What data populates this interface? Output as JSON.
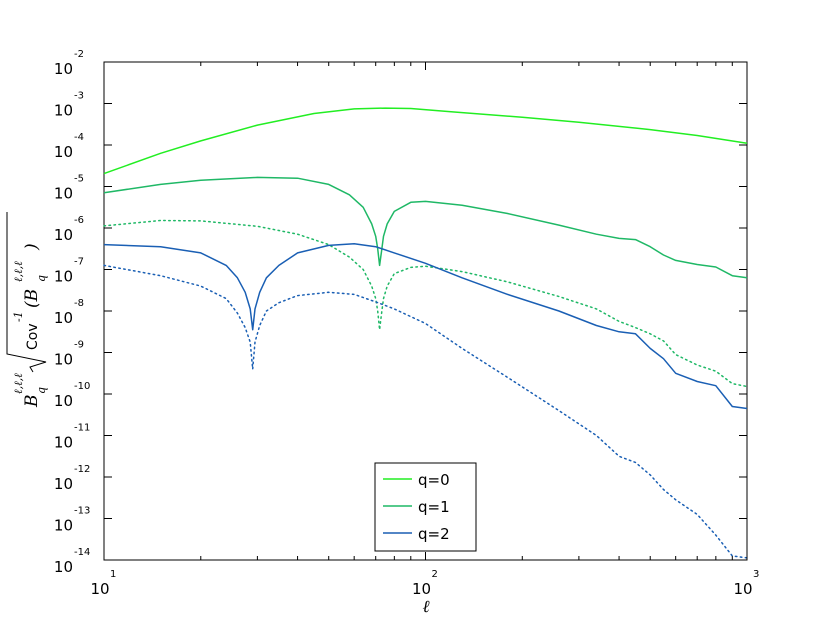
{
  "chart_data": {
    "type": "line",
    "xlabel": "ℓ",
    "ylabel": {
      "main": "B",
      "sub": "q",
      "sup": "ℓ,ℓ,ℓ",
      "cov": "Cov",
      "inv": "-1",
      "paren_main": "(B",
      "paren_sub": "q",
      "paren_sup": "ℓ,ℓ,ℓ",
      "paren_close": ")"
    },
    "xscale": "log",
    "yscale": "log",
    "xlim": [
      10,
      1000
    ],
    "ylim": [
      1e-14,
      0.01
    ],
    "x_ticks": [
      {
        "value": 10,
        "base": "10",
        "exp": "1"
      },
      {
        "value": 100,
        "base": "10",
        "exp": "2"
      },
      {
        "value": 1000,
        "base": "10",
        "exp": "3"
      }
    ],
    "y_ticks": [
      {
        "value": -2,
        "base": "10",
        "exp": "-2"
      },
      {
        "value": -3,
        "base": "10",
        "exp": "-3"
      },
      {
        "value": -4,
        "base": "10",
        "exp": "-4"
      },
      {
        "value": -5,
        "base": "10",
        "exp": "-5"
      },
      {
        "value": -6,
        "base": "10",
        "exp": "-6"
      },
      {
        "value": -7,
        "base": "10",
        "exp": "-7"
      },
      {
        "value": -8,
        "base": "10",
        "exp": "-8"
      },
      {
        "value": -9,
        "base": "10",
        "exp": "-9"
      },
      {
        "value": -10,
        "base": "10",
        "exp": "-10"
      },
      {
        "value": -11,
        "base": "10",
        "exp": "-11"
      },
      {
        "value": -12,
        "base": "10",
        "exp": "-12"
      },
      {
        "value": -13,
        "base": "10",
        "exp": "-13"
      },
      {
        "value": -14,
        "base": "10",
        "exp": "-14"
      }
    ],
    "grid": false,
    "legend_position": "bottom-center",
    "series": [
      {
        "name": "q=0",
        "color": "#22ee22",
        "style": "solid",
        "x": [
          10,
          15,
          20,
          30,
          45,
          60,
          75,
          90,
          120,
          200,
          300,
          500,
          700,
          1000
        ],
        "logy": [
          -4.69,
          -4.2,
          -3.9,
          -3.52,
          -3.24,
          -3.13,
          -3.11,
          -3.12,
          -3.2,
          -3.33,
          -3.45,
          -3.63,
          -3.77,
          -3.96
        ]
      },
      {
        "name": "q=1",
        "color": "#1fb866",
        "style": "solid",
        "x": [
          10,
          15,
          20,
          30,
          40,
          50,
          58,
          64,
          68,
          70,
          71,
          72,
          73,
          74,
          76,
          80,
          90,
          100,
          130,
          180,
          260,
          340,
          400,
          450,
          500,
          550,
          600,
          700,
          800,
          900,
          1000
        ],
        "logy": [
          -5.15,
          -4.95,
          -4.85,
          -4.78,
          -4.8,
          -4.95,
          -5.2,
          -5.5,
          -5.9,
          -6.2,
          -6.5,
          -6.9,
          -6.55,
          -6.2,
          -5.9,
          -5.6,
          -5.38,
          -5.36,
          -5.45,
          -5.65,
          -5.93,
          -6.15,
          -6.25,
          -6.28,
          -6.45,
          -6.65,
          -6.78,
          -6.88,
          -6.94,
          -7.15,
          -7.2
        ]
      },
      {
        "name": "",
        "color": "#1fb866",
        "style": "dotted",
        "x": [
          10,
          15,
          20,
          30,
          40,
          50,
          58,
          64,
          68,
          70,
          71,
          72,
          73,
          74,
          76,
          80,
          90,
          100,
          130,
          180,
          260,
          340,
          400,
          450,
          500,
          550,
          600,
          700,
          800,
          900,
          1000
        ],
        "logy": [
          -5.95,
          -5.82,
          -5.83,
          -5.96,
          -6.15,
          -6.4,
          -6.7,
          -7.0,
          -7.4,
          -7.7,
          -8.0,
          -8.45,
          -8.05,
          -7.7,
          -7.4,
          -7.1,
          -6.95,
          -6.92,
          -7.05,
          -7.3,
          -7.65,
          -7.95,
          -8.25,
          -8.4,
          -8.55,
          -8.72,
          -9.05,
          -9.3,
          -9.45,
          -9.75,
          -9.82
        ]
      },
      {
        "name": "q=2",
        "color": "#1a5fb4",
        "style": "solid",
        "x": [
          10,
          15,
          20,
          24,
          26,
          27.5,
          28.5,
          29,
          29.5,
          30.5,
          32,
          35,
          40,
          50,
          60,
          70,
          80,
          100,
          130,
          180,
          260,
          340,
          400,
          450,
          500,
          550,
          600,
          700,
          800,
          900,
          1000
        ],
        "logy": [
          -6.4,
          -6.45,
          -6.6,
          -6.9,
          -7.2,
          -7.55,
          -7.95,
          -8.45,
          -7.95,
          -7.55,
          -7.2,
          -6.9,
          -6.6,
          -6.42,
          -6.38,
          -6.45,
          -6.6,
          -6.85,
          -7.2,
          -7.6,
          -8.0,
          -8.35,
          -8.5,
          -8.55,
          -8.9,
          -9.15,
          -9.5,
          -9.7,
          -9.8,
          -10.3,
          -10.35
        ]
      },
      {
        "name": "",
        "color": "#1a5fb4",
        "style": "dotted",
        "x": [
          10,
          15,
          20,
          24,
          26,
          27.5,
          28.5,
          29,
          29.5,
          30.5,
          32,
          35,
          40,
          50,
          60,
          70,
          80,
          100,
          130,
          180,
          260,
          340,
          400,
          450,
          500,
          550,
          600,
          700,
          800,
          900,
          1000
        ],
        "logy": [
          -6.9,
          -7.15,
          -7.4,
          -7.7,
          -8.05,
          -8.4,
          -8.75,
          -9.4,
          -8.75,
          -8.35,
          -8.0,
          -7.8,
          -7.63,
          -7.55,
          -7.6,
          -7.78,
          -7.95,
          -8.3,
          -8.9,
          -9.6,
          -10.4,
          -11.0,
          -11.5,
          -11.65,
          -11.95,
          -12.3,
          -12.55,
          -12.9,
          -13.4,
          -13.9,
          -13.95
        ]
      }
    ]
  }
}
